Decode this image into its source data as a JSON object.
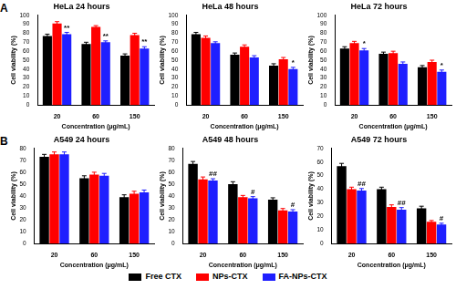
{
  "chart_data": [
    {
      "type": "bar",
      "panel": "A",
      "title": "HeLa 24 hours",
      "x_label": "Concentration (μg/mL)",
      "y_label": "Cell viability (%)",
      "categories": [
        "20",
        "60",
        "150"
      ],
      "ylim": [
        0,
        100
      ],
      "yticks": [
        0,
        10,
        20,
        30,
        40,
        50,
        60,
        70,
        80,
        90,
        100
      ],
      "series": [
        {
          "name": "Free CTX",
          "color": "#000000",
          "values": [
            77,
            68,
            55
          ],
          "errors": [
            2,
            2,
            2
          ],
          "significance": [
            null,
            null,
            null
          ]
        },
        {
          "name": "NPs-CTX",
          "color": "#ff0000",
          "values": [
            91,
            87,
            78
          ],
          "errors": [
            2,
            1.5,
            2
          ],
          "significance": [
            null,
            null,
            null
          ]
        },
        {
          "name": "FA-NPs-CTX",
          "color": "#1f1fff",
          "values": [
            79,
            70,
            63
          ],
          "errors": [
            2,
            1.5,
            2
          ],
          "significance": [
            "**",
            "**",
            "**"
          ]
        }
      ]
    },
    {
      "type": "bar",
      "title": "HeLa 48 hours",
      "x_label": "Concentration (μg/mL)",
      "y_label": "Cell viability (%)",
      "categories": [
        "20",
        "60",
        "150"
      ],
      "ylim": [
        0,
        100
      ],
      "yticks": [
        0,
        10,
        20,
        30,
        40,
        50,
        60,
        70,
        80,
        90,
        100
      ],
      "series": [
        {
          "name": "Free CTX",
          "color": "#000000",
          "values": [
            79,
            56,
            44
          ],
          "errors": [
            2,
            2,
            2
          ],
          "significance": [
            null,
            null,
            null
          ]
        },
        {
          "name": "NPs-CTX",
          "color": "#ff0000",
          "values": [
            75,
            65,
            51
          ],
          "errors": [
            2,
            2,
            2
          ],
          "significance": [
            null,
            null,
            null
          ]
        },
        {
          "name": "FA-NPs-CTX",
          "color": "#1f1fff",
          "values": [
            69,
            53,
            40
          ],
          "errors": [
            1.5,
            2,
            2
          ],
          "significance": [
            null,
            null,
            "*"
          ]
        }
      ]
    },
    {
      "type": "bar",
      "title": "HeLa 72 hours",
      "x_label": "Concentration (μg/mL)",
      "y_label": "Cell viability (%)",
      "categories": [
        "20",
        "60",
        "150"
      ],
      "ylim": [
        0,
        100
      ],
      "yticks": [
        0,
        10,
        20,
        30,
        40,
        50,
        60,
        70,
        80,
        90,
        100
      ],
      "series": [
        {
          "name": "Free CTX",
          "color": "#000000",
          "values": [
            63,
            57,
            42
          ],
          "errors": [
            2,
            2,
            2
          ],
          "significance": [
            null,
            null,
            null
          ]
        },
        {
          "name": "NPs-CTX",
          "color": "#ff0000",
          "values": [
            69,
            58,
            48
          ],
          "errors": [
            2,
            2,
            2
          ],
          "significance": [
            null,
            null,
            null
          ]
        },
        {
          "name": "FA-NPs-CTX",
          "color": "#1f1fff",
          "values": [
            61,
            46,
            37
          ],
          "errors": [
            2,
            2,
            2
          ],
          "significance": [
            "*",
            null,
            "*"
          ]
        }
      ]
    },
    {
      "type": "bar",
      "panel": "B",
      "title": "A549 24 hours",
      "x_label": "Concentration (μg/mL)",
      "y_label": "Cell viability (%)",
      "categories": [
        "20",
        "60",
        "150"
      ],
      "ylim": [
        0,
        80
      ],
      "yticks": [
        0,
        10,
        20,
        30,
        40,
        50,
        60,
        70,
        80
      ],
      "series": [
        {
          "name": "Free CTX",
          "color": "#000000",
          "values": [
            73,
            55,
            39
          ],
          "errors": [
            2,
            2,
            2
          ],
          "significance": [
            null,
            null,
            null
          ]
        },
        {
          "name": "NPs-CTX",
          "color": "#ff0000",
          "values": [
            75,
            58,
            42
          ],
          "errors": [
            2,
            2,
            2
          ],
          "significance": [
            null,
            null,
            null
          ]
        },
        {
          "name": "FA-NPs-CTX",
          "color": "#1f1fff",
          "values": [
            75,
            57,
            43
          ],
          "errors": [
            2,
            2,
            2
          ],
          "significance": [
            null,
            null,
            null
          ]
        }
      ]
    },
    {
      "type": "bar",
      "title": "A549 48 hours",
      "x_label": "Concentration (μg/mL)",
      "y_label": "Cell viability (%)",
      "categories": [
        "20",
        "60",
        "150"
      ],
      "ylim": [
        0,
        80
      ],
      "yticks": [
        0,
        10,
        20,
        30,
        40,
        50,
        60,
        70,
        80
      ],
      "series": [
        {
          "name": "Free CTX",
          "color": "#000000",
          "values": [
            67,
            50,
            37
          ],
          "errors": [
            2,
            2,
            1.5
          ],
          "significance": [
            null,
            null,
            null
          ]
        },
        {
          "name": "NPs-CTX",
          "color": "#ff0000",
          "values": [
            54,
            39,
            28
          ],
          "errors": [
            2,
            1.5,
            1.5
          ],
          "significance": [
            null,
            null,
            null
          ]
        },
        {
          "name": "FA-NPs-CTX",
          "color": "#1f1fff",
          "values": [
            53,
            38,
            27
          ],
          "errors": [
            1.5,
            1.5,
            1.5
          ],
          "significance": [
            "##",
            "#",
            "#"
          ]
        }
      ]
    },
    {
      "type": "bar",
      "title": "A549 72 hours",
      "x_label": "Concentration (μg/mL)",
      "y_label": "Cell viability (%)",
      "categories": [
        "20",
        "60",
        "150"
      ],
      "ylim": [
        0,
        70
      ],
      "yticks": [
        0,
        10,
        20,
        30,
        40,
        50,
        60,
        70
      ],
      "series": [
        {
          "name": "Free CTX",
          "color": "#000000",
          "values": [
            57,
            40,
            26
          ],
          "errors": [
            2,
            1.5,
            1.5
          ],
          "significance": [
            null,
            null,
            null
          ]
        },
        {
          "name": "NPs-CTX",
          "color": "#ff0000",
          "values": [
            40,
            27,
            16
          ],
          "errors": [
            1.5,
            1.5,
            1
          ],
          "significance": [
            null,
            null,
            null
          ]
        },
        {
          "name": "FA-NPs-CTX",
          "color": "#1f1fff",
          "values": [
            39,
            25,
            14
          ],
          "errors": [
            1.5,
            1.5,
            1
          ],
          "significance": [
            "##",
            "##",
            "#"
          ]
        }
      ]
    }
  ]
}
